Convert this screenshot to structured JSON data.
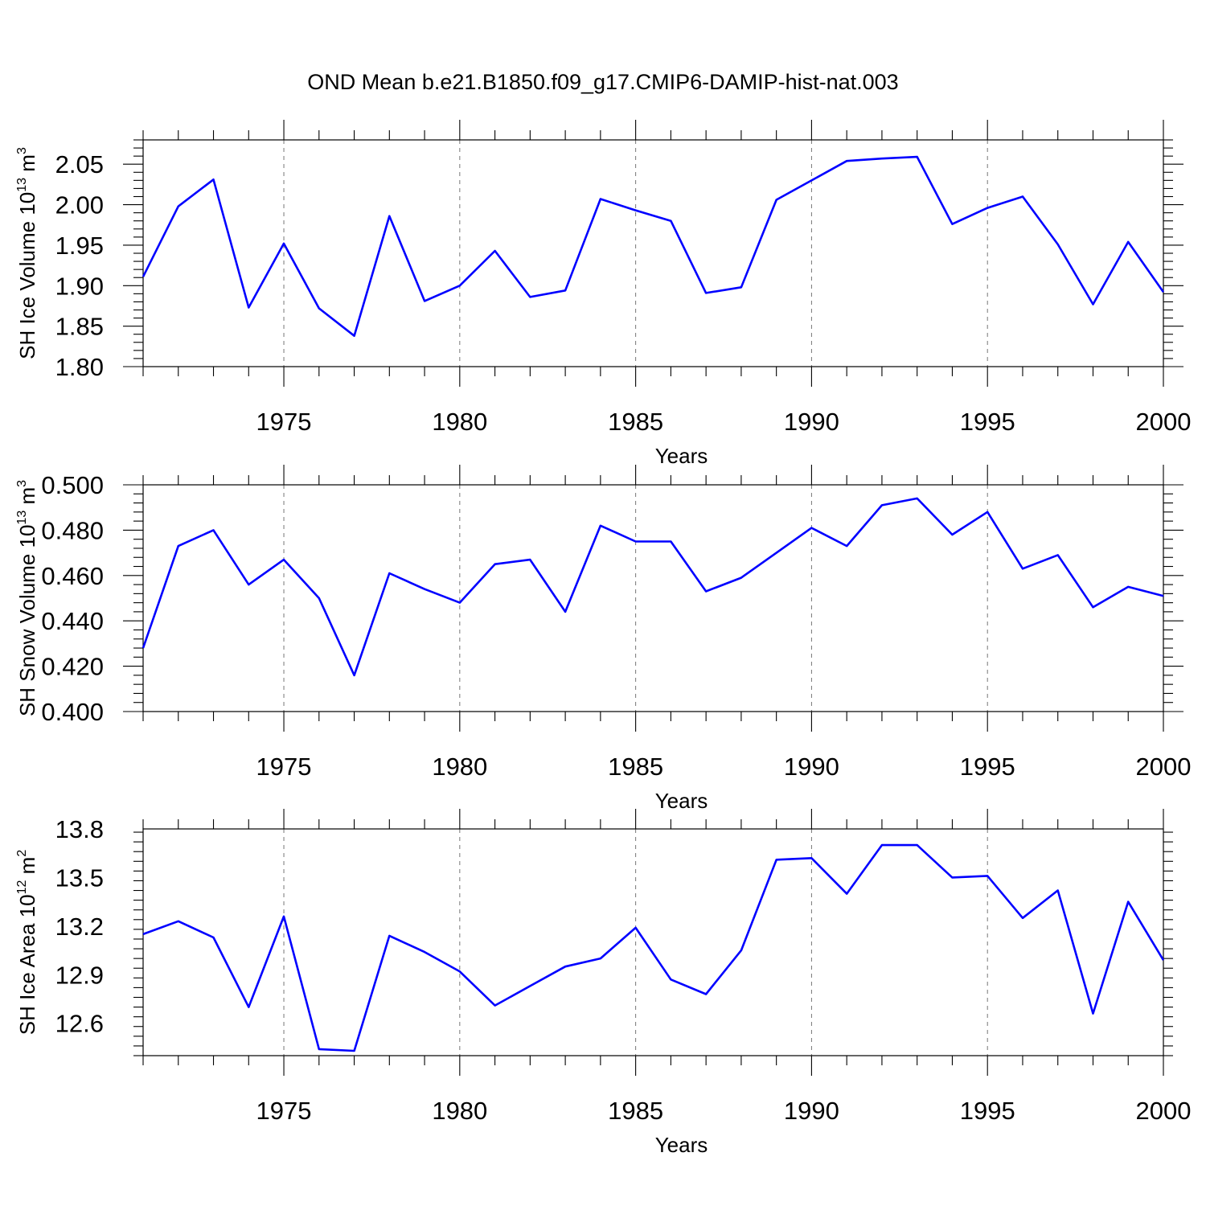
{
  "title": "OND Mean b.e21.B1850.f09_g17.CMIP6-DAMIP-hist-nat.003",
  "chart_data": [
    {
      "type": "line",
      "ylabel": "SH Ice Volume 10",
      "ylabel_exp": "13",
      "ylabel_unit": " m",
      "ylabel_unit_exp": "3",
      "xlabel": "Years",
      "xlim": [
        1971,
        2000
      ],
      "ylim": [
        1.8,
        2.08
      ],
      "xticks": [
        "1975",
        "1980",
        "1985",
        "1990",
        "1995",
        "2000"
      ],
      "yticks": [
        "1.80",
        "1.85",
        "1.90",
        "1.95",
        "2.00",
        "2.05"
      ],
      "series_color": "#0000ff",
      "x": [
        1971,
        1972,
        1973,
        1974,
        1975,
        1976,
        1977,
        1978,
        1979,
        1980,
        1981,
        1982,
        1983,
        1984,
        1985,
        1986,
        1987,
        1988,
        1989,
        1990,
        1991,
        1992,
        1993,
        1994,
        1995,
        1996,
        1997,
        1998,
        1999,
        2000
      ],
      "values": [
        1.911,
        1.998,
        2.031,
        1.873,
        1.952,
        1.872,
        1.838,
        1.986,
        1.881,
        1.9,
        1.943,
        1.886,
        1.894,
        2.007,
        1.993,
        1.98,
        1.891,
        1.898,
        2.006,
        2.03,
        2.054,
        2.057,
        2.059,
        1.976,
        1.996,
        2.01,
        1.951,
        1.877,
        1.954,
        1.892
      ]
    },
    {
      "type": "line",
      "ylabel": "SH Snow Volume 10",
      "ylabel_exp": "13",
      "ylabel_unit": " m",
      "ylabel_unit_exp": "3",
      "xlabel": "Years",
      "xlim": [
        1971,
        2000
      ],
      "ylim": [
        0.4,
        0.5
      ],
      "xticks": [
        "1975",
        "1980",
        "1985",
        "1990",
        "1995",
        "2000"
      ],
      "yticks": [
        "0.400",
        "0.420",
        "0.440",
        "0.460",
        "0.480",
        "0.500"
      ],
      "series_color": "#0000ff",
      "x": [
        1971,
        1972,
        1973,
        1974,
        1975,
        1976,
        1977,
        1978,
        1979,
        1980,
        1981,
        1982,
        1983,
        1984,
        1985,
        1986,
        1987,
        1988,
        1989,
        1990,
        1991,
        1992,
        1993,
        1994,
        1995,
        1996,
        1997,
        1998,
        1999,
        2000
      ],
      "values": [
        0.428,
        0.473,
        0.48,
        0.456,
        0.467,
        0.45,
        0.416,
        0.461,
        0.454,
        0.448,
        0.465,
        0.467,
        0.444,
        0.482,
        0.475,
        0.475,
        0.453,
        0.459,
        0.47,
        0.481,
        0.473,
        0.491,
        0.494,
        0.478,
        0.488,
        0.463,
        0.469,
        0.446,
        0.455,
        0.451
      ]
    },
    {
      "type": "line",
      "ylabel": "SH Ice Area 10",
      "ylabel_exp": "12",
      "ylabel_unit": " m",
      "ylabel_unit_exp": "2",
      "xlabel": "Years",
      "xlim": [
        1971,
        2000
      ],
      "ylim": [
        12.4,
        13.8
      ],
      "xticks": [
        "1975",
        "1980",
        "1985",
        "1990",
        "1995",
        "2000"
      ],
      "yticks": [
        "12.6",
        "12.9",
        "13.2",
        "13.5",
        "13.8"
      ],
      "series_color": "#0000ff",
      "x": [
        1971,
        1972,
        1973,
        1974,
        1975,
        1976,
        1977,
        1978,
        1979,
        1980,
        1981,
        1982,
        1983,
        1984,
        1985,
        1986,
        1987,
        1988,
        1989,
        1990,
        1991,
        1992,
        1993,
        1994,
        1995,
        1996,
        1997,
        1998,
        1999,
        2000
      ],
      "values": [
        13.15,
        13.23,
        13.13,
        12.7,
        13.26,
        12.44,
        12.43,
        13.14,
        13.04,
        12.92,
        12.71,
        12.83,
        12.95,
        13.0,
        13.19,
        12.87,
        12.78,
        13.05,
        13.61,
        13.62,
        13.4,
        13.7,
        13.7,
        13.5,
        13.51,
        13.25,
        13.42,
        12.66,
        13.35,
        12.99
      ]
    }
  ]
}
